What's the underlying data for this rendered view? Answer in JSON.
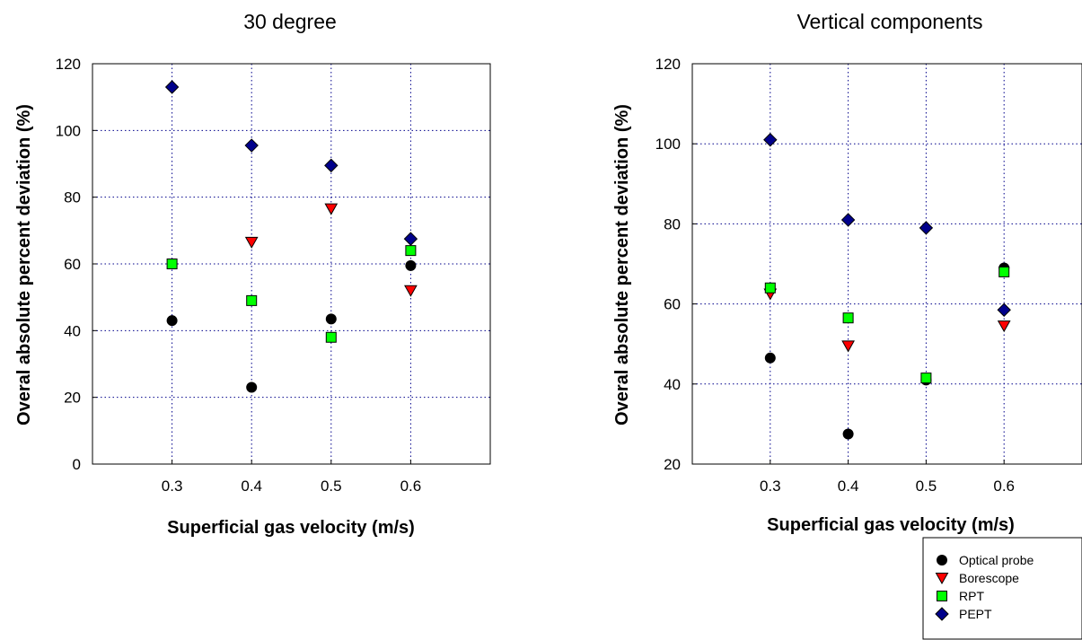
{
  "chart_data": [
    {
      "type": "scatter",
      "title": "30 degree",
      "xlabel": "Superficial gas velocity (m/s)",
      "ylabel": "Overal absolute percent deviation (%)",
      "xlim": [
        0.2,
        0.7
      ],
      "ylim": [
        0,
        120
      ],
      "xticks": [
        "0.3",
        "0.4",
        "0.5",
        "0.6"
      ],
      "yticks": [
        "0",
        "20",
        "40",
        "60",
        "80",
        "100",
        "120"
      ],
      "grid": true,
      "x": [
        0.3,
        0.4,
        0.5,
        0.6
      ],
      "series": [
        {
          "name": "Optical probe",
          "values": [
            43,
            23,
            43.5,
            59.5
          ]
        },
        {
          "name": "Borescope",
          "values": [
            null,
            66.5,
            76.5,
            52
          ]
        },
        {
          "name": "RPT",
          "values": [
            60,
            49,
            38,
            64
          ]
        },
        {
          "name": "PEPT",
          "values": [
            113,
            95.5,
            89.5,
            67.5
          ]
        }
      ]
    },
    {
      "type": "scatter",
      "title": "Vertical components",
      "xlabel": "Superficial gas velocity (m/s)",
      "ylabel": "Overal absolute percent deviation (%)",
      "xlim": [
        0.2,
        0.7
      ],
      "ylim": [
        20,
        120
      ],
      "xticks": [
        "0.3",
        "0.4",
        "0.5",
        "0.6"
      ],
      "yticks": [
        "20",
        "40",
        "60",
        "80",
        "100",
        "120"
      ],
      "grid": true,
      "x": [
        0.3,
        0.4,
        0.5,
        0.6
      ],
      "series": [
        {
          "name": "Optical probe",
          "values": [
            46.5,
            27.5,
            41,
            69
          ]
        },
        {
          "name": "Borescope",
          "values": [
            62.5,
            49.5,
            null,
            54.5
          ]
        },
        {
          "name": "RPT",
          "values": [
            64,
            56.5,
            41.5,
            68
          ]
        },
        {
          "name": "PEPT",
          "values": [
            101,
            81,
            79,
            58.5
          ]
        }
      ]
    }
  ],
  "legend": {
    "placement": "bottom-right",
    "entries": [
      {
        "label": "Optical probe",
        "marker": "circle",
        "color": "#000000"
      },
      {
        "label": "Borescope",
        "marker": "triangle-down",
        "color": "#ff0000"
      },
      {
        "label": "RPT",
        "marker": "square",
        "color": "#00ff00"
      },
      {
        "label": "PEPT",
        "marker": "diamond",
        "color": "#00008b"
      }
    ]
  },
  "colors": {
    "grid": "#00008b",
    "Optical probe": "#000000",
    "Borescope": "#ff0000",
    "RPT": "#00ff00",
    "PEPT": "#00008b"
  }
}
